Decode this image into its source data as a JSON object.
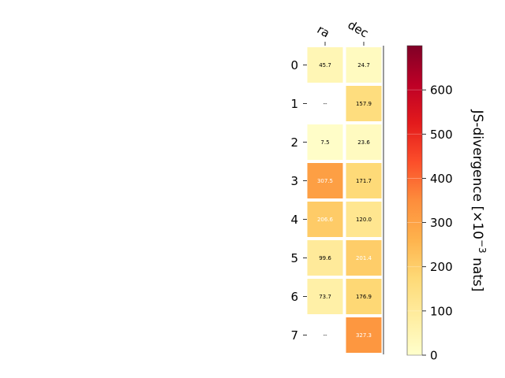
{
  "chart_data": {
    "type": "heatmap",
    "columns": [
      "ra",
      "dec"
    ],
    "rows": [
      "0",
      "1",
      "2",
      "3",
      "4",
      "5",
      "6",
      "7"
    ],
    "values": [
      [
        45.7,
        24.7
      ],
      [
        null,
        157.9
      ],
      [
        7.5,
        23.6
      ],
      [
        307.5,
        171.7
      ],
      [
        206.6,
        120.0
      ],
      [
        99.6,
        201.4
      ],
      [
        73.7,
        176.9
      ],
      [
        null,
        327.3
      ]
    ],
    "cell_labels": [
      [
        "45.7",
        "24.7"
      ],
      [
        "--",
        "157.9"
      ],
      [
        "7.5",
        "23.6"
      ],
      [
        "307.5",
        "171.7"
      ],
      [
        "206.6",
        "120.0"
      ],
      [
        "99.6",
        "201.4"
      ],
      [
        "73.7",
        "176.9"
      ],
      [
        "--",
        "327.3"
      ]
    ],
    "colormap": "YlOrRd",
    "vmin": 0,
    "vmax": 700,
    "colorbar": {
      "ticks": [
        "0",
        "100",
        "200",
        "300",
        "400",
        "500",
        "600"
      ],
      "label_main": "JS-divergence [×10",
      "label_exp": "−3",
      "label_unit": " nats]"
    }
  }
}
